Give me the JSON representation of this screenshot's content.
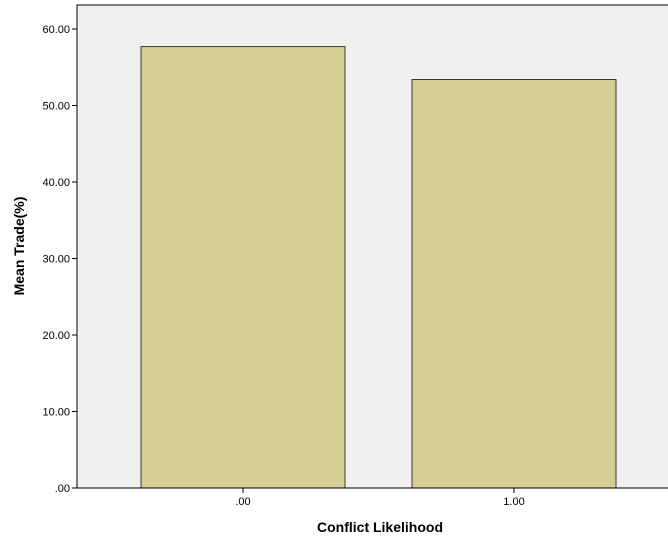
{
  "chart_data": {
    "type": "bar",
    "categories": [
      ".00",
      "1.00"
    ],
    "values": [
      57.7,
      53.4
    ],
    "title": "",
    "xlabel": "Conflict Likelihood",
    "ylabel": "Mean Trade(%)",
    "ylim": [
      0,
      60
    ],
    "yticks": [
      ".00",
      "10.00",
      "20.00",
      "30.00",
      "40.00",
      "50.00",
      "60.00"
    ],
    "grid": false,
    "legend": "none",
    "colors": {
      "plot_background": "#f0f0f0",
      "bar_fill": "#d4ce96",
      "bar_stroke": "#3a3a2a",
      "axis": "#000000"
    }
  }
}
